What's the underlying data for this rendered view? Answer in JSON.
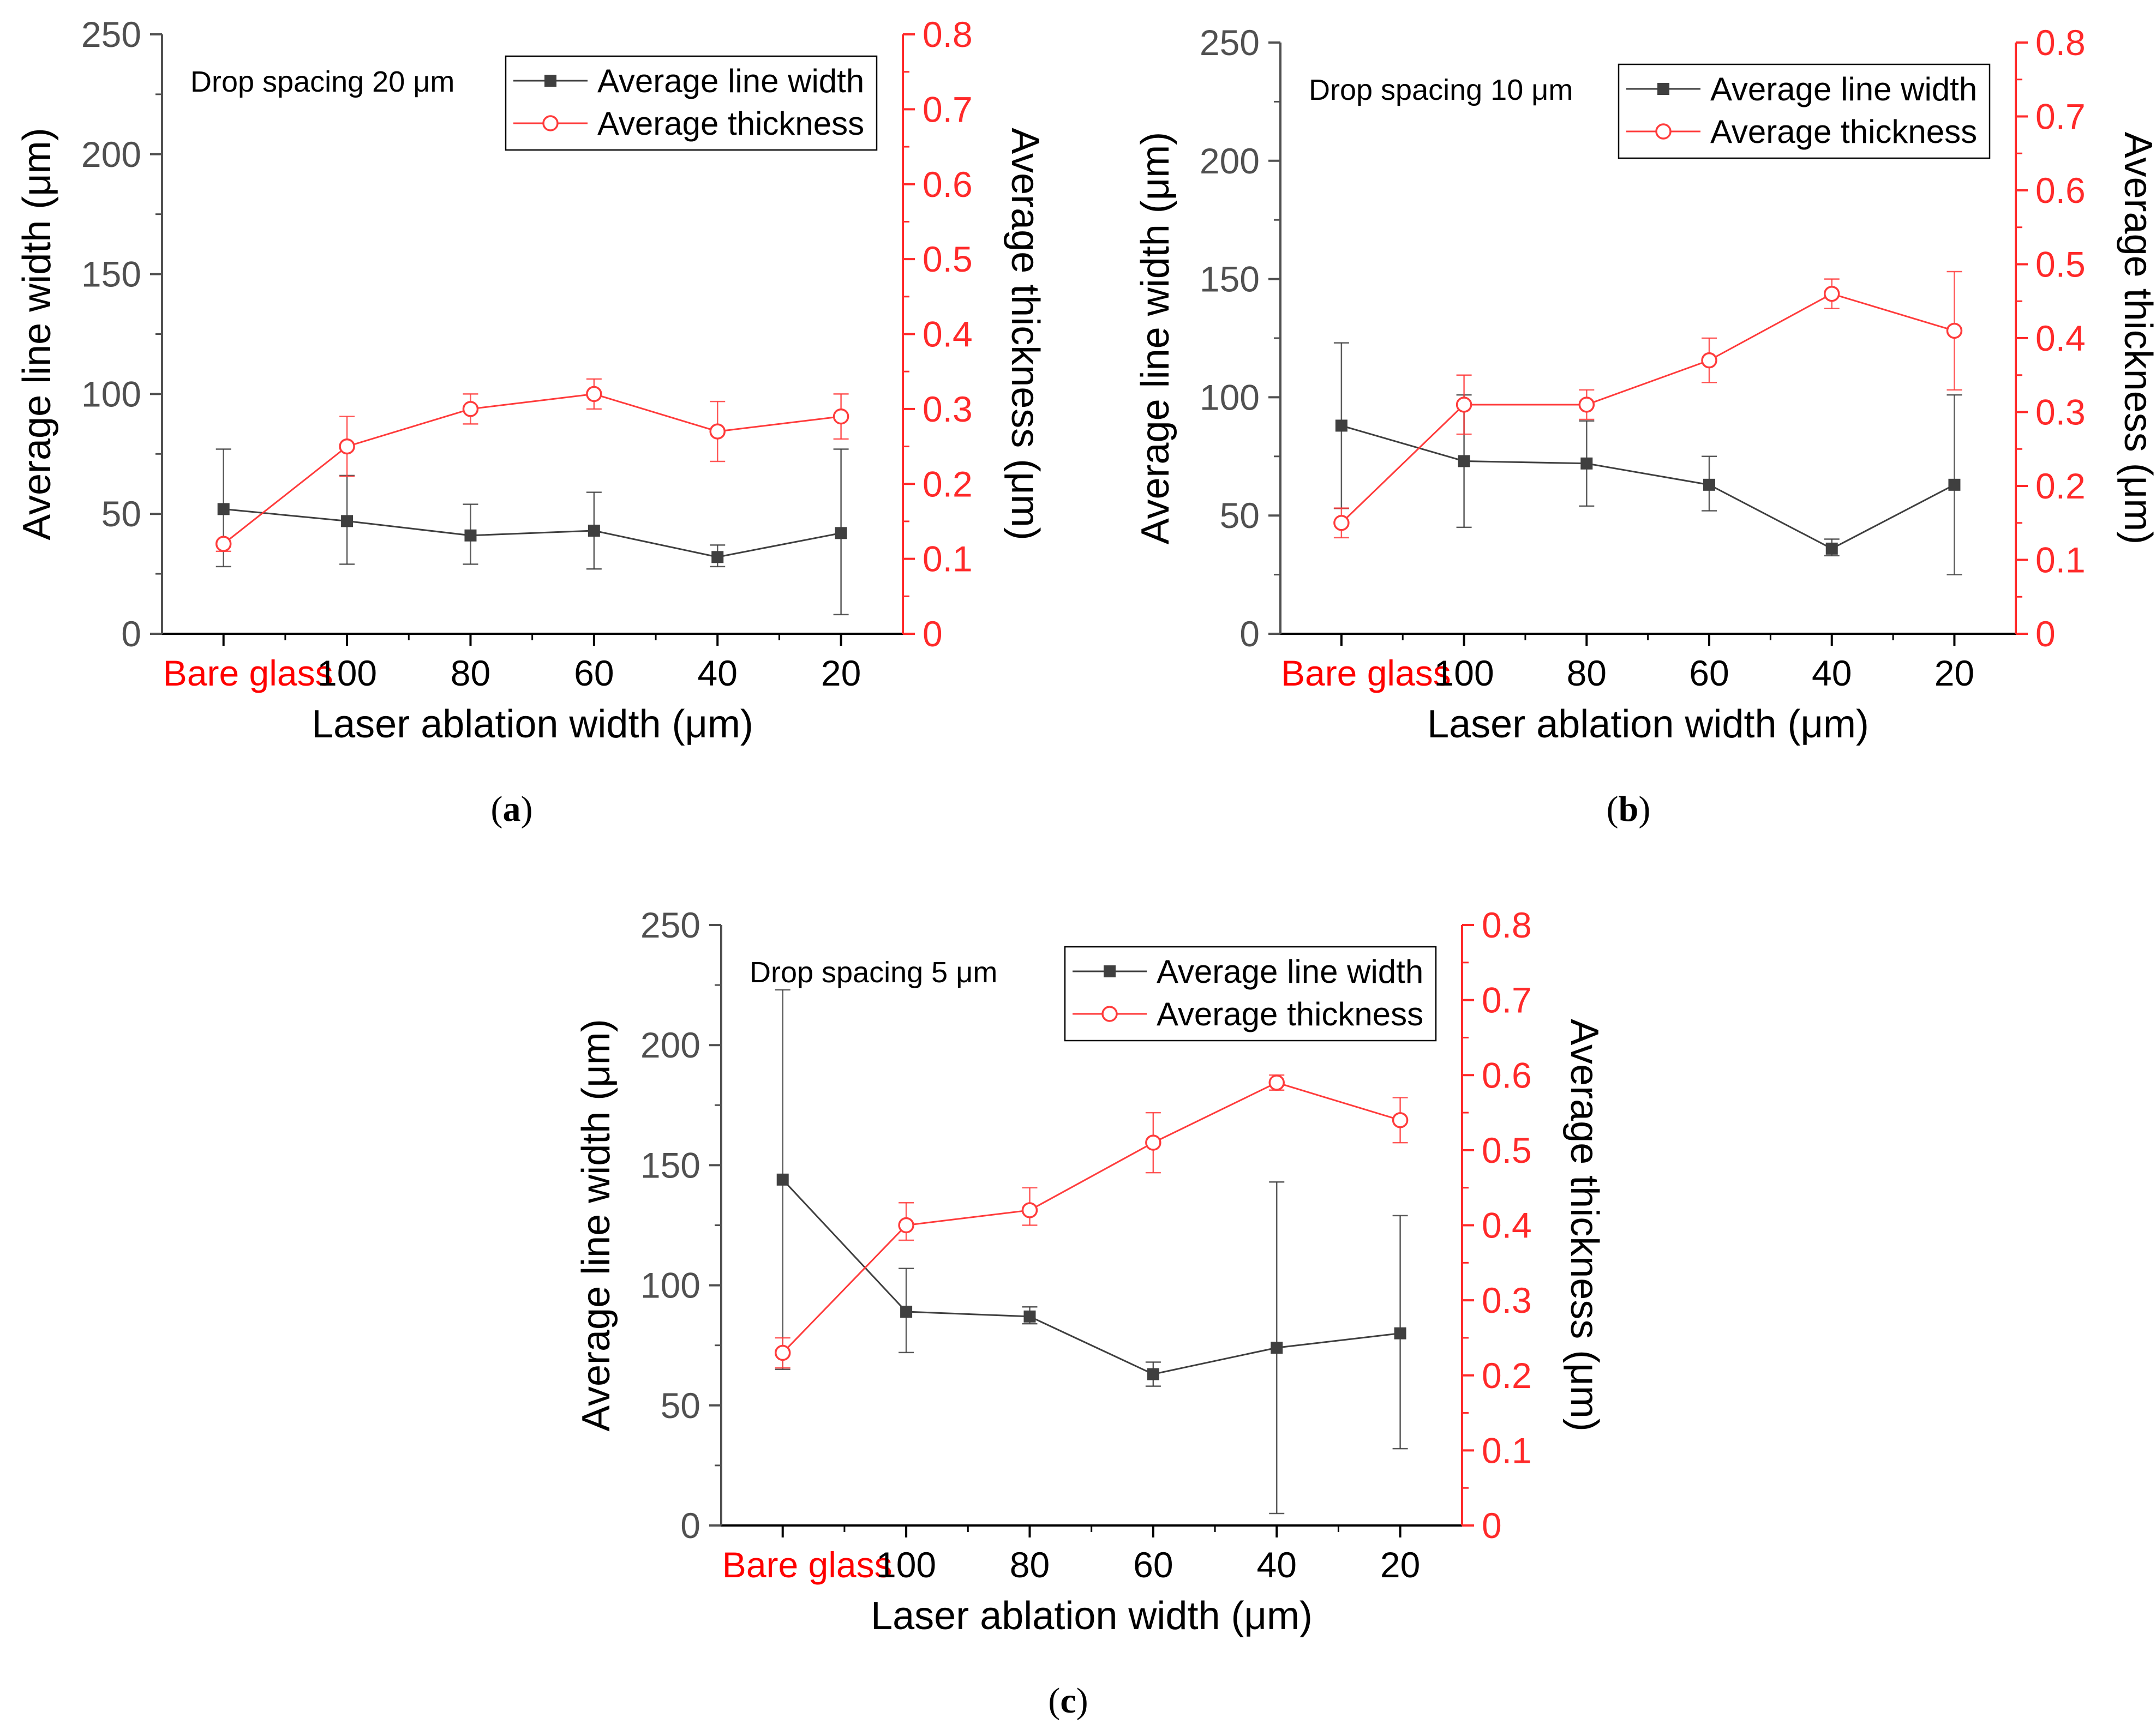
{
  "colors": {
    "width_series": "#3f3f3f",
    "thickness_series": "#ff3b3b",
    "axis": "#000000",
    "left_axis": "#505050",
    "right_axis": "#ff2a2a",
    "bare_glass_label": "#ff0000"
  },
  "shared": {
    "categories": [
      "Bare glass",
      "100",
      "80",
      "60",
      "40",
      "20"
    ],
    "xlabel": "Laser ablation width (μm)",
    "ylabel_left": "Average line width (μm)",
    "ylabel_right": "Average thickness (μm)",
    "ylim_left": [
      0,
      250
    ],
    "ylim_right": [
      0,
      0.8
    ],
    "left_ticks": [
      "0",
      "50",
      "100",
      "150",
      "200",
      "250"
    ],
    "right_ticks": [
      "0",
      "0.1",
      "0.2",
      "0.3",
      "0.4",
      "0.5",
      "0.6",
      "0.7",
      "0.8"
    ],
    "legend": [
      "Average line width",
      "Average thickness"
    ]
  },
  "chart_data": [
    {
      "panel": "a",
      "caption": "a",
      "type": "line",
      "annotation": "Drop spacing 20 μm",
      "categories": [
        "Bare glass",
        "100",
        "80",
        "60",
        "40",
        "20"
      ],
      "series": [
        {
          "name": "Average line width",
          "axis": "left",
          "marker": "filled-square",
          "values": [
            52,
            47,
            41,
            43,
            32,
            42
          ],
          "err_low": [
            28,
            29,
            29,
            27,
            28,
            8
          ],
          "err_high": [
            77,
            66,
            54,
            59,
            37,
            77
          ]
        },
        {
          "name": "Average thickness",
          "axis": "right",
          "marker": "open-circle",
          "values": [
            0.12,
            0.25,
            0.3,
            0.32,
            0.27,
            0.29
          ],
          "err_low": [
            0.11,
            0.21,
            0.28,
            0.3,
            0.23,
            0.26
          ],
          "err_high": [
            0.12,
            0.29,
            0.32,
            0.34,
            0.31,
            0.32
          ]
        }
      ]
    },
    {
      "panel": "b",
      "caption": "b",
      "type": "line",
      "annotation": "Drop spacing 10 μm",
      "categories": [
        "Bare glass",
        "100",
        "80",
        "60",
        "40",
        "20"
      ],
      "series": [
        {
          "name": "Average line width",
          "axis": "left",
          "marker": "filled-square",
          "values": [
            88,
            73,
            72,
            63,
            36,
            63
          ],
          "err_low": [
            53,
            45,
            54,
            52,
            33,
            25
          ],
          "err_high": [
            123,
            101,
            90,
            75,
            40,
            101
          ]
        },
        {
          "name": "Average thickness",
          "axis": "right",
          "marker": "open-circle",
          "values": [
            0.15,
            0.31,
            0.31,
            0.37,
            0.46,
            0.41
          ],
          "err_low": [
            0.13,
            0.27,
            0.29,
            0.34,
            0.44,
            0.33
          ],
          "err_high": [
            0.17,
            0.35,
            0.33,
            0.4,
            0.48,
            0.49
          ]
        }
      ]
    },
    {
      "panel": "c",
      "caption": "c",
      "type": "line",
      "annotation": "Drop spacing 5 μm",
      "categories": [
        "Bare glass",
        "100",
        "80",
        "60",
        "40",
        "20"
      ],
      "series": [
        {
          "name": "Average line width",
          "axis": "left",
          "marker": "filled-square",
          "values": [
            144,
            89,
            87,
            63,
            74,
            80
          ],
          "err_low": [
            65,
            72,
            84,
            58,
            5,
            32
          ],
          "err_high": [
            223,
            107,
            91,
            68,
            143,
            129
          ]
        },
        {
          "name": "Average thickness",
          "axis": "right",
          "marker": "open-circle",
          "values": [
            0.23,
            0.4,
            0.42,
            0.51,
            0.59,
            0.54
          ],
          "err_low": [
            0.21,
            0.38,
            0.4,
            0.47,
            0.58,
            0.51
          ],
          "err_high": [
            0.25,
            0.43,
            0.45,
            0.55,
            0.6,
            0.57
          ]
        }
      ]
    }
  ]
}
